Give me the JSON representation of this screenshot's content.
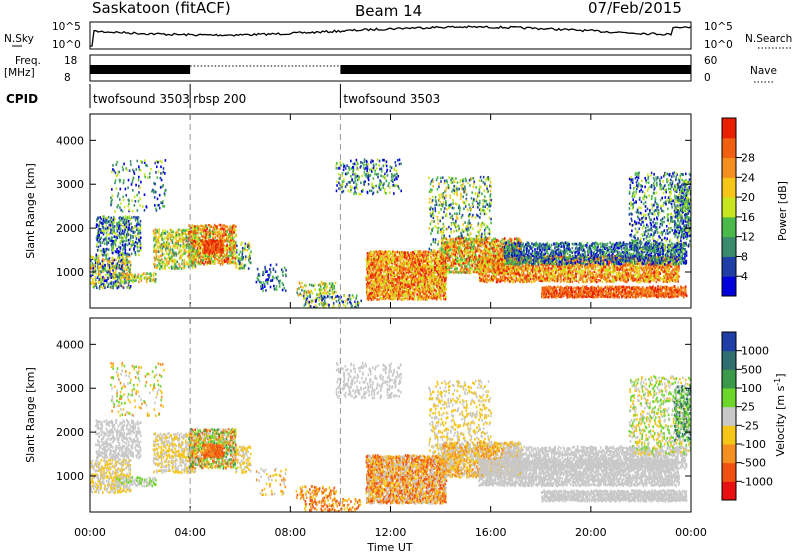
{
  "chart_data": {
    "type": "heatmap",
    "title": "Saskatoon (fitACF)",
    "beam_label": "Beam 14",
    "date_label": "07/Feb/2015",
    "time_axis": {
      "xlabel": "Time UT",
      "xlim_hours": [
        0,
        24
      ],
      "tick_labels": [
        "00:00",
        "04:00",
        "08:00",
        "12:00",
        "16:00",
        "20:00",
        "00:00"
      ]
    },
    "noise_panel": {
      "left_label": "N.Sky",
      "right_label": "N.Search",
      "ticks": [
        "10^5",
        "10^0"
      ]
    },
    "freq_panel": {
      "left_label_1": "Freq.",
      "left_label_2": "[MHz]",
      "right_label": "Nave",
      "left_ticks": [
        "18",
        "8"
      ],
      "right_ticks": [
        "60",
        "0"
      ]
    },
    "cpid_panel": {
      "label": "CPID",
      "segments": [
        {
          "name": "twofsound 3503",
          "start_hour": 0,
          "end_hour": 4
        },
        {
          "name": "rbsp 200",
          "start_hour": 4,
          "end_hour": 10
        },
        {
          "name": "twofsound 3503",
          "start_hour": 10,
          "end_hour": 24
        }
      ]
    },
    "power_panel": {
      "ylabel": "Slant Range [km]",
      "yticks": [
        "1000",
        "2000",
        "3000",
        "4000"
      ],
      "ylim_km": [
        180,
        4600
      ],
      "colorbar_label": "Power [dB]",
      "colorbar_ticks": [
        "4",
        "8",
        "12",
        "16",
        "20",
        "24",
        "28"
      ],
      "colors": [
        "#0000dd",
        "#1f3fa6",
        "#3a8a6e",
        "#49b94a",
        "#c8e620",
        "#f5c518",
        "#f59020",
        "#f06010",
        "#e82000"
      ]
    },
    "velocity_panel": {
      "ylabel": "Slant Range [km]",
      "yticks": [
        "1000",
        "2000",
        "3000",
        "4000"
      ],
      "ylim_km": [
        180,
        4600
      ],
      "colorbar_label": "Velocity [m s^-1]",
      "colorbar_ticks": [
        "1000",
        "500",
        "100",
        "25",
        "-25",
        "-100",
        "-500",
        "-1000"
      ],
      "colors": [
        "#1f3fa6",
        "#2e6e6e",
        "#3a9a4a",
        "#6dd62a",
        "#c8c8c8",
        "#f5c518",
        "#f59020",
        "#f05010",
        "#e81010"
      ]
    }
  }
}
